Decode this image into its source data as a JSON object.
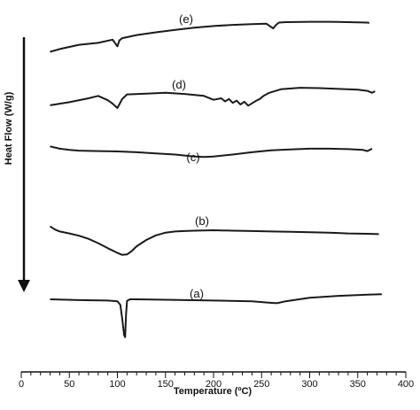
{
  "chart_data": {
    "type": "line",
    "title": "",
    "xlabel": "Temperature (ºC)",
    "ylabel": "Heat Flow  (W/g)",
    "xlim": [
      0,
      400
    ],
    "x_ticks": [
      0,
      50,
      100,
      150,
      200,
      250,
      300,
      350,
      400
    ],
    "x_tick_labels": [
      "0",
      "50",
      "100",
      "150",
      "200",
      "250",
      "300",
      "350",
      "400"
    ],
    "y_axis_arrow": "down",
    "grid": false,
    "legend": "none",
    "line_color": "#1a1a1a",
    "series": [
      {
        "name": "(e)",
        "x": [
          30,
          40,
          60,
          80,
          95,
          100,
          102,
          105,
          120,
          140,
          160,
          180,
          200,
          220,
          240,
          255,
          262,
          265,
          268,
          275,
          300,
          320,
          340,
          360,
          362
        ],
        "y": [
          0.8,
          1.5,
          2.6,
          3.1,
          3.9,
          2.2,
          3.7,
          4.3,
          5.1,
          5.8,
          6.4,
          7.0,
          7.4,
          7.7,
          7.9,
          8.0,
          6.8,
          7.7,
          8.3,
          8.4,
          8.5,
          8.5,
          8.4,
          8.3,
          8.2
        ]
      },
      {
        "name": "(d)",
        "x": [
          30,
          50,
          70,
          80,
          90,
          95,
          100,
          105,
          110,
          130,
          150,
          170,
          190,
          200,
          208,
          212,
          216,
          220,
          224,
          228,
          232,
          236,
          240,
          244,
          248,
          252,
          258,
          270,
          290,
          310,
          330,
          350,
          360,
          365,
          368
        ],
        "y": [
          -0.2,
          0.6,
          1.6,
          2.2,
          1.1,
          0.2,
          -0.9,
          1.4,
          2.6,
          2.8,
          3.0,
          2.7,
          2.2,
          1.2,
          1.6,
          0.8,
          1.4,
          0.4,
          1.0,
          0.0,
          0.7,
          -0.3,
          0.3,
          0.9,
          1.4,
          2.2,
          3.0,
          3.9,
          4.3,
          4.2,
          4.0,
          3.8,
          3.5,
          3.0,
          3.4
        ]
      },
      {
        "name": "(c)",
        "x": [
          30,
          40,
          50,
          60,
          80,
          100,
          120,
          140,
          160,
          180,
          190,
          200,
          220,
          240,
          260,
          280,
          300,
          320,
          340,
          355,
          360,
          365
        ],
        "y": [
          8.8,
          8.2,
          7.9,
          7.7,
          7.6,
          7.5,
          7.3,
          7.0,
          6.7,
          6.2,
          6.1,
          6.2,
          6.7,
          7.3,
          7.8,
          8.0,
          8.2,
          8.2,
          8.1,
          7.9,
          7.6,
          8.2
        ]
      },
      {
        "name": "(b)",
        "x": [
          30,
          35,
          40,
          50,
          60,
          70,
          80,
          90,
          100,
          105,
          110,
          115,
          120,
          130,
          140,
          150,
          160,
          170,
          180,
          200,
          220,
          240,
          260,
          280,
          300,
          320,
          340,
          360,
          372
        ],
        "y": [
          9.4,
          8.6,
          8.1,
          7.6,
          7.0,
          6.2,
          5.1,
          3.8,
          2.6,
          2.1,
          2.2,
          3.1,
          4.3,
          5.9,
          7.1,
          7.8,
          8.1,
          8.2,
          8.3,
          8.4,
          8.3,
          8.2,
          8.1,
          8.0,
          7.9,
          7.8,
          7.6,
          7.5,
          7.4
        ]
      },
      {
        "name": "(a)",
        "x": [
          30,
          60,
          90,
          100,
          103,
          105,
          107,
          108,
          109,
          110,
          113,
          120,
          150,
          200,
          240,
          260,
          266,
          275,
          300,
          330,
          360,
          375
        ],
        "y": [
          10.9,
          10.7,
          10.6,
          10.4,
          9.5,
          6.0,
          1.7,
          1.2,
          7.2,
          10.5,
          10.9,
          10.9,
          10.8,
          10.6,
          10.4,
          10.0,
          9.9,
          10.4,
          11.3,
          11.8,
          12.1,
          12.2
        ]
      }
    ]
  }
}
